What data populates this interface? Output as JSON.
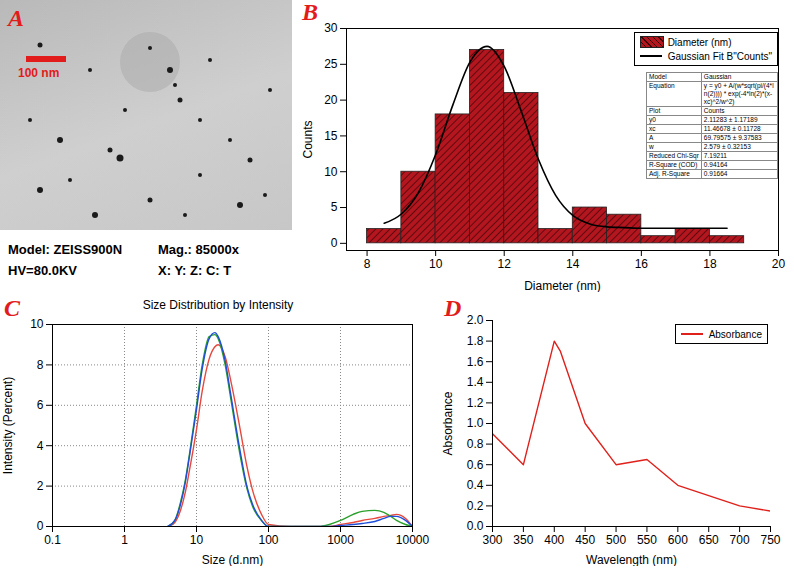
{
  "chart_data": [
    {
      "type": "image",
      "panel": "A",
      "scale_bar_label": "100 nm",
      "caption": [
        "Model: ZEISS900N",
        "Mag.: 85000x",
        "HV=80.0KV",
        "X: Y: Z: C: T"
      ]
    },
    {
      "type": "histogram",
      "panel": "B",
      "xlabel": "Diameter (nm)",
      "ylabel": "Counts",
      "xlim": [
        7.4,
        20
      ],
      "xticks": [
        8,
        10,
        12,
        14,
        16,
        18,
        20
      ],
      "ylim": [
        -1,
        30
      ],
      "yticks": [
        0,
        5,
        10,
        15,
        20,
        25,
        30
      ],
      "legend": "top-right",
      "series": [
        {
          "name": "Diameter (nm)",
          "type": "bar",
          "color": "#b3161e",
          "bins": [
            8,
            9,
            10,
            11,
            12,
            13,
            14,
            15,
            16,
            17,
            18,
            19
          ],
          "values": [
            2,
            10,
            18,
            27,
            21,
            2,
            5,
            4,
            1,
            2,
            1
          ]
        },
        {
          "name": "Gaussian Fit B\"Counts\"",
          "type": "line",
          "color": "#000000",
          "x": [
            8.5,
            9,
            9.5,
            10,
            10.5,
            11,
            11.5,
            12,
            12.5,
            13,
            13.5,
            14,
            14.5,
            15,
            15.5,
            16,
            16.5,
            17,
            17.5,
            18,
            18.5
          ],
          "values": [
            2.8,
            4.1,
            7.1,
            12.4,
            19.3,
            25.3,
            27.5,
            24.7,
            18.4,
            11.7,
            6.7,
            3.9,
            2.7,
            2.3,
            2.2,
            2.1,
            2.1,
            2.1,
            2.1,
            2.1,
            2.1
          ]
        }
      ],
      "fit_table": [
        [
          "Model",
          "Gaussian"
        ],
        [
          "Equation",
          "y = y0 + A/(w*sqrt(pi/(4*ln(2)))) * exp(-4*ln(2)*(x-xc)^2/w^2)"
        ],
        [
          "Plot",
          "Counts"
        ],
        [
          "y0",
          "2.11283 ± 1.17189"
        ],
        [
          "xc",
          "11.46678 ± 0.11728"
        ],
        [
          "A",
          "69.79575 ± 9.37583"
        ],
        [
          "w",
          "2.579 ± 0.32153"
        ],
        [
          "Reduced Chi-Sqr",
          "7.19211"
        ],
        [
          "R-Square (COD)",
          "0.94164"
        ],
        [
          "Adj. R-Square",
          "0.91664"
        ]
      ]
    },
    {
      "type": "line",
      "panel": "C",
      "title": "Size Distribution by Intensity",
      "xlabel": "Size (d.nm)",
      "ylabel": "Intensity (Percent)",
      "log": "x",
      "grid": true,
      "xlim": [
        0.1,
        10000
      ],
      "xticks": [
        0.1,
        1,
        10,
        100,
        1000,
        10000
      ],
      "ylim": [
        0,
        10
      ],
      "yticks": [
        0,
        2,
        4,
        6,
        8,
        10
      ],
      "x": [
        4,
        5,
        6,
        7,
        8,
        10,
        12,
        15,
        18,
        20,
        25,
        30,
        40,
        50,
        60,
        80,
        100,
        200,
        500,
        700,
        1000,
        1500,
        2000,
        3000,
        4000,
        5000,
        6000,
        8000,
        10000
      ],
      "series": [
        {
          "color": "#e8483c",
          "line_style": "smooth",
          "values": [
            0,
            0.2,
            0.8,
            1.7,
            2.8,
            4.8,
            6.7,
            8.3,
            8.9,
            9.0,
            8.4,
            7.2,
            4.9,
            3.0,
            1.8,
            0.6,
            0.1,
            0,
            0,
            0,
            0.1,
            0.2,
            0.3,
            0.4,
            0.5,
            0.55,
            0.6,
            0.4,
            0
          ]
        },
        {
          "color": "#2ca02c",
          "line_style": "smooth",
          "values": [
            0,
            0.3,
            1.2,
            2.3,
            3.6,
            6.0,
            8.0,
            9.4,
            9.5,
            9.3,
            8.0,
            6.3,
            3.6,
            1.9,
            1.0,
            0.3,
            0,
            0,
            0,
            0.1,
            0.3,
            0.6,
            0.75,
            0.8,
            0.7,
            0.5,
            0.3,
            0.1,
            0
          ]
        },
        {
          "color": "#1f4fd8",
          "line_style": "smooth",
          "values": [
            0,
            0.3,
            1.1,
            2.2,
            3.5,
            5.8,
            7.8,
            9.3,
            9.6,
            9.4,
            8.2,
            6.5,
            3.8,
            2.0,
            1.1,
            0.3,
            0,
            0,
            0,
            0,
            0.05,
            0.1,
            0.15,
            0.25,
            0.4,
            0.5,
            0.5,
            0.3,
            0
          ]
        }
      ]
    },
    {
      "type": "line",
      "panel": "D",
      "xlabel": "Wavelength (nm)",
      "ylabel": "Absorbance",
      "xlim": [
        300,
        750
      ],
      "xticks": [
        300,
        350,
        400,
        450,
        500,
        550,
        600,
        650,
        700,
        750
      ],
      "ylim": [
        0,
        2
      ],
      "yticks": [
        {
          "value": 0,
          "label": "0.0"
        },
        0.2,
        0.4,
        0.6,
        0.8,
        {
          "value": 1,
          "label": "1.0"
        },
        1.2,
        1.4,
        1.6,
        1.8,
        {
          "value": 2,
          "label": "2.0"
        }
      ],
      "legend": "top-right",
      "series": [
        {
          "name": "Absorbance",
          "color": "#e0201b",
          "line_style": "solid",
          "x": [
            300,
            350,
            400,
            410,
            450,
            500,
            550,
            600,
            650,
            700,
            750
          ],
          "values": [
            0.9,
            0.6,
            1.8,
            1.7,
            1.0,
            0.6,
            0.65,
            0.4,
            0.3,
            0.2,
            0.15
          ]
        }
      ]
    }
  ]
}
